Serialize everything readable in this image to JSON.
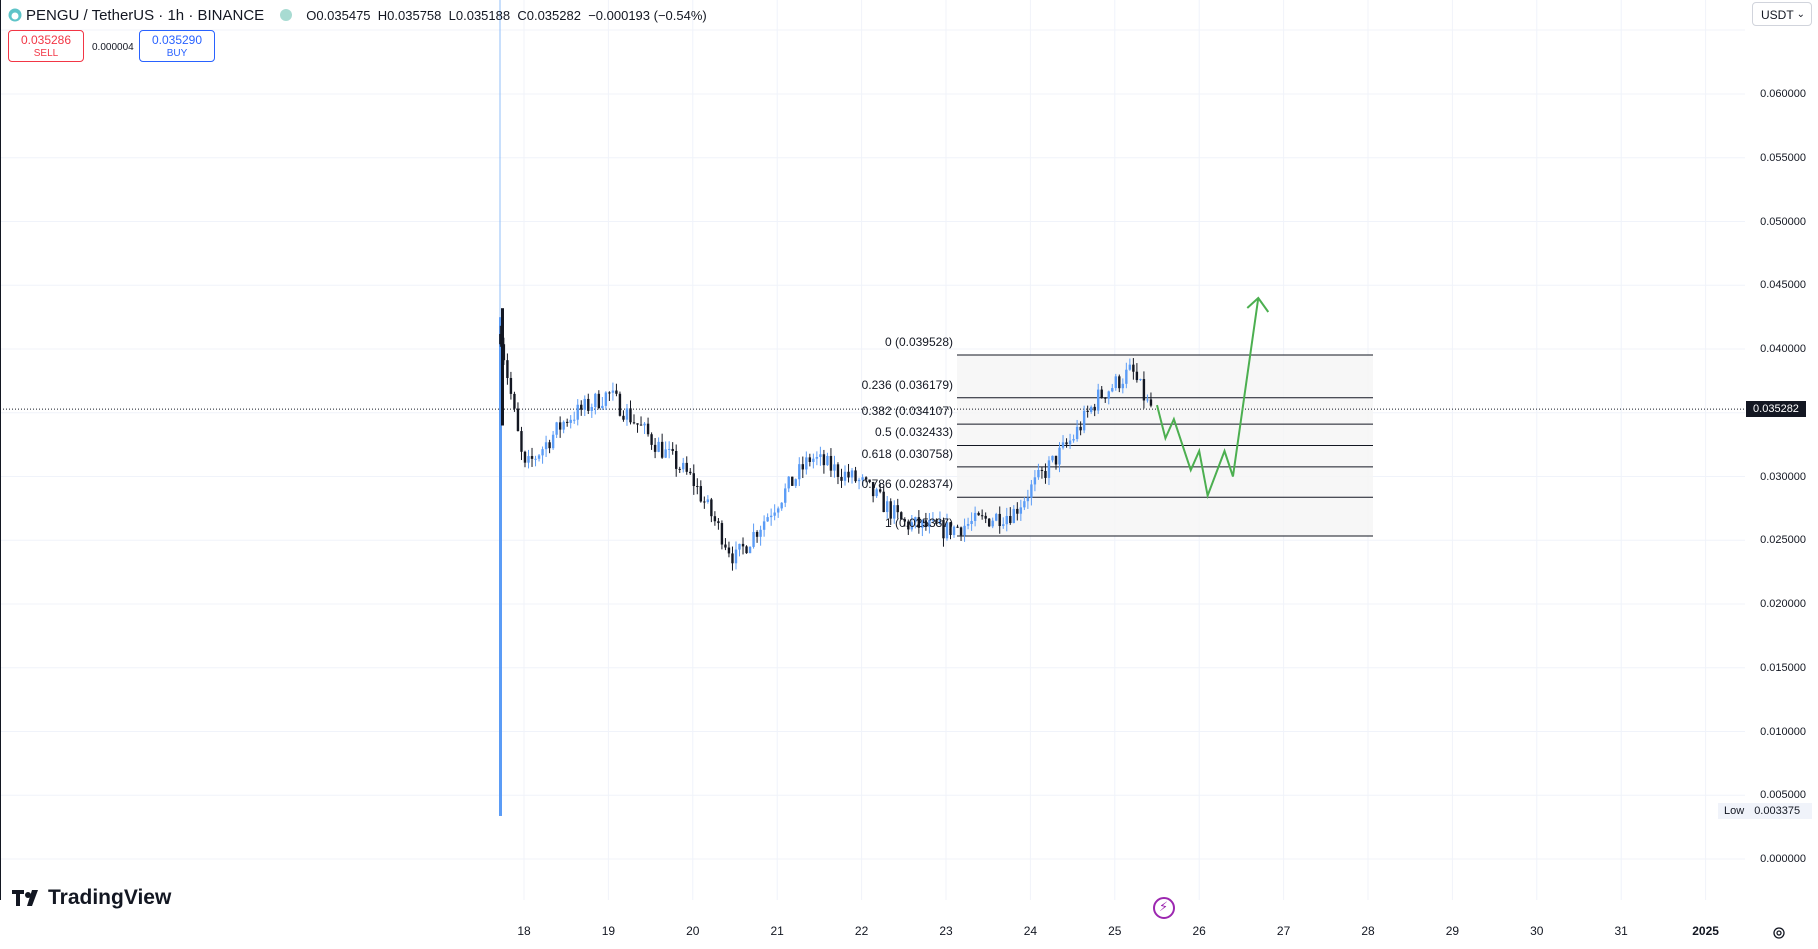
{
  "header": {
    "symbol": "PENGU",
    "separator": "/",
    "quote": "TetherUS",
    "interval": "1h",
    "exchange": "BINANCE",
    "ohlc": {
      "open_label": "O",
      "open": "0.035475",
      "high_label": "H",
      "high": "0.035758",
      "low_label": "L",
      "low": "0.035188",
      "close_label": "C",
      "close": "0.035282",
      "change": "−0.000193 (−0.54%)"
    }
  },
  "trade": {
    "sell_price": "0.035286",
    "sell_label": "SELL",
    "spread": "0.000004",
    "buy_price": "0.035290",
    "buy_label": "BUY"
  },
  "currency": {
    "label": "USDT",
    "chevron": "⌄"
  },
  "price_axis": {
    "labels": [
      "0.060000",
      "0.055000",
      "0.050000",
      "0.045000",
      "0.040000",
      "0.030000",
      "0.025000",
      "0.020000",
      "0.015000",
      "0.010000",
      "0.005000",
      "0.000000"
    ],
    "current_price": "0.035282",
    "low_label": "Low",
    "low_value": "0.003375"
  },
  "time_axis": {
    "labels": [
      "18",
      "19",
      "20",
      "21",
      "22",
      "23",
      "24",
      "25",
      "26",
      "27",
      "28",
      "29",
      "30",
      "31",
      "2025"
    ]
  },
  "fib": {
    "levels": [
      {
        "label": "0 (0.039528)",
        "value": 0.039528
      },
      {
        "label": "0.236 (0.036179)",
        "value": 0.036179
      },
      {
        "label": "0.382 (0.034107)",
        "value": 0.034107
      },
      {
        "label": "0.5 (0.032433)",
        "value": 0.032433
      },
      {
        "label": "0.618 (0.030758)",
        "value": 0.030758
      },
      {
        "label": "0.786 (0.028374)",
        "value": 0.028374
      },
      {
        "label": "1 (0.025337)",
        "value": 0.025337
      }
    ]
  },
  "branding": {
    "logo_text": "TradingView"
  },
  "colors": {
    "up": "#5b9cf6",
    "down": "#131722",
    "projection": "#4caf50",
    "sell": "#f23645",
    "buy": "#2962ff",
    "grid": "#f0f3fa"
  },
  "chart_data": {
    "type": "candlestick",
    "symbol": "PENGU/USDT",
    "interval": "1h",
    "ylim": [
      0.0,
      0.064
    ],
    "x": [
      "18",
      "19",
      "20",
      "21",
      "22",
      "23",
      "24",
      "25",
      "26",
      "27",
      "28",
      "29",
      "30",
      "31",
      "2025"
    ],
    "approx_close_path": [
      {
        "date": "17",
        "price": 0.0427
      },
      {
        "date": "18",
        "price": 0.0305
      },
      {
        "date": "18.5",
        "price": 0.0345
      },
      {
        "date": "19",
        "price": 0.0365
      },
      {
        "date": "19.5",
        "price": 0.033
      },
      {
        "date": "20",
        "price": 0.0297
      },
      {
        "date": "20.5",
        "price": 0.0235
      },
      {
        "date": "21",
        "price": 0.028
      },
      {
        "date": "21.4",
        "price": 0.0315
      },
      {
        "date": "22",
        "price": 0.0295
      },
      {
        "date": "22.5",
        "price": 0.0263
      },
      {
        "date": "23",
        "price": 0.0258
      },
      {
        "date": "23.8",
        "price": 0.0272
      },
      {
        "date": "24",
        "price": 0.029
      },
      {
        "date": "24.5",
        "price": 0.033
      },
      {
        "date": "24.8",
        "price": 0.0362
      },
      {
        "date": "25.2",
        "price": 0.0383
      },
      {
        "date": "25.4",
        "price": 0.0355
      }
    ],
    "projection_path": [
      {
        "date": "25.5",
        "price": 0.0356
      },
      {
        "date": "25.6",
        "price": 0.033
      },
      {
        "date": "25.7",
        "price": 0.0345
      },
      {
        "date": "25.9",
        "price": 0.0305
      },
      {
        "date": "26",
        "price": 0.032
      },
      {
        "date": "26.1",
        "price": 0.0285
      },
      {
        "date": "26.3",
        "price": 0.032
      },
      {
        "date": "26.4",
        "price": 0.03
      },
      {
        "date": "26.7",
        "price": 0.044
      }
    ],
    "spike_low": 0.003375,
    "current_price": 0.035282
  }
}
